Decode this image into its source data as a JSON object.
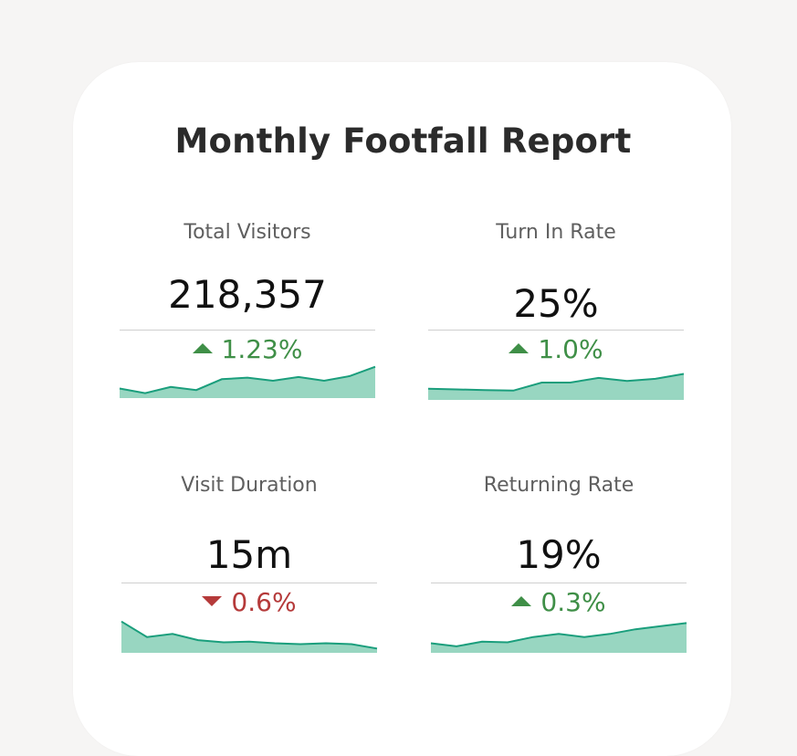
{
  "report": {
    "title": "Monthly Footfall Report"
  },
  "metrics": [
    {
      "label": "Total Visitors",
      "value": "218,357",
      "change": "1.23%",
      "direction": "up",
      "trend": [
        0.25,
        0.1,
        0.3,
        0.2,
        0.55,
        0.6,
        0.5,
        0.62,
        0.5,
        0.65,
        0.95
      ]
    },
    {
      "label": "Turn In Rate",
      "value": "25%",
      "change": "1.0%",
      "direction": "up",
      "trend": [
        0.3,
        0.28,
        0.26,
        0.24,
        0.5,
        0.5,
        0.65,
        0.55,
        0.62,
        0.78
      ]
    },
    {
      "label": "Visit Duration",
      "value": "15m",
      "change": "0.6%",
      "direction": "down",
      "trend": [
        0.95,
        0.45,
        0.55,
        0.35,
        0.28,
        0.3,
        0.25,
        0.22,
        0.25,
        0.22,
        0.08
      ]
    },
    {
      "label": "Returning Rate",
      "value": "19%",
      "change": "0.3%",
      "direction": "up",
      "trend": [
        0.25,
        0.15,
        0.3,
        0.28,
        0.45,
        0.55,
        0.45,
        0.55,
        0.7,
        0.8,
        0.9
      ]
    }
  ],
  "colors": {
    "positive": "#3f8f47",
    "negative": "#b53a3a",
    "sparkline_stroke": "#1a9e7c",
    "sparkline_fill": "#98d6c1"
  }
}
